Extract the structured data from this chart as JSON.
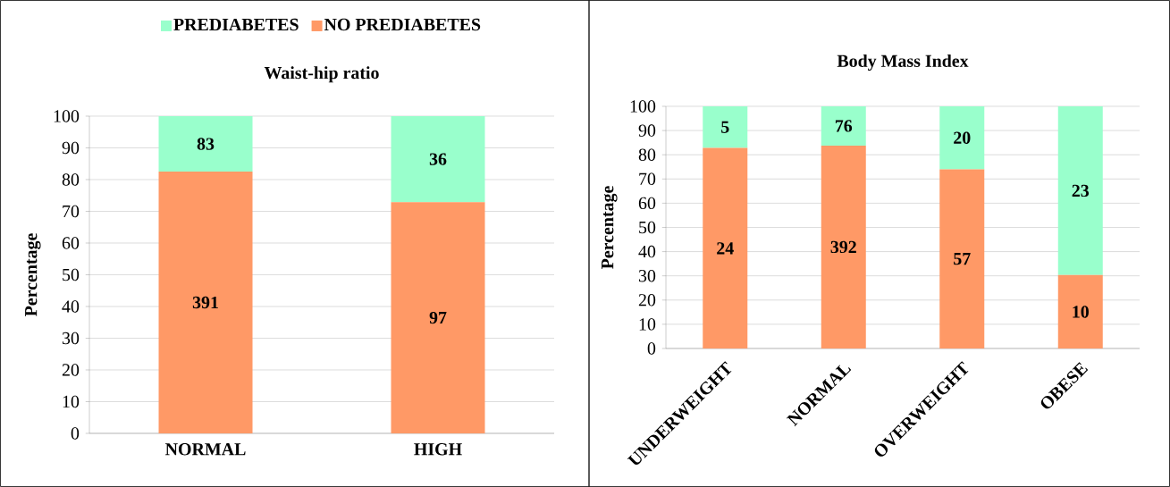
{
  "chart_data": [
    {
      "type": "bar",
      "title": "Waist-hip ratio",
      "ylabel": "Percentage",
      "categories": [
        "NORMAL",
        "HIGH"
      ],
      "stacked": true,
      "ylim": [
        0,
        100
      ],
      "yticks": [
        0,
        10,
        20,
        30,
        40,
        50,
        60,
        70,
        80,
        90,
        100
      ],
      "grid": "y",
      "legend": "top",
      "series": [
        {
          "name": "NO PREDIABETES",
          "color": "#ff9966",
          "values": [
            82.5,
            72.9
          ]
        },
        {
          "name": "PREDIABETES",
          "color": "#99ffcc",
          "values": [
            17.5,
            27.1
          ]
        }
      ],
      "annotations": [
        "391",
        "97",
        "83",
        "36"
      ]
    },
    {
      "type": "bar",
      "title": "Body Mass Index",
      "ylabel": "Percentage",
      "categories": [
        "UNDERWEIGHT",
        "NORMAL",
        "OVERWEIGHT",
        "OBESE"
      ],
      "stacked": true,
      "ylim": [
        0,
        100
      ],
      "yticks": [
        0,
        10,
        20,
        30,
        40,
        50,
        60,
        70,
        80,
        90,
        100
      ],
      "grid": "y",
      "series": [
        {
          "color": "#ff9966",
          "values": [
            82.8,
            83.8,
            74.0,
            30.3
          ]
        },
        {
          "color": "#99ffcc",
          "values": [
            17.2,
            16.2,
            26.0,
            69.7
          ]
        }
      ],
      "annotations": [
        "24",
        "392",
        "57",
        "10",
        "5",
        "76",
        "20",
        "23"
      ]
    }
  ]
}
